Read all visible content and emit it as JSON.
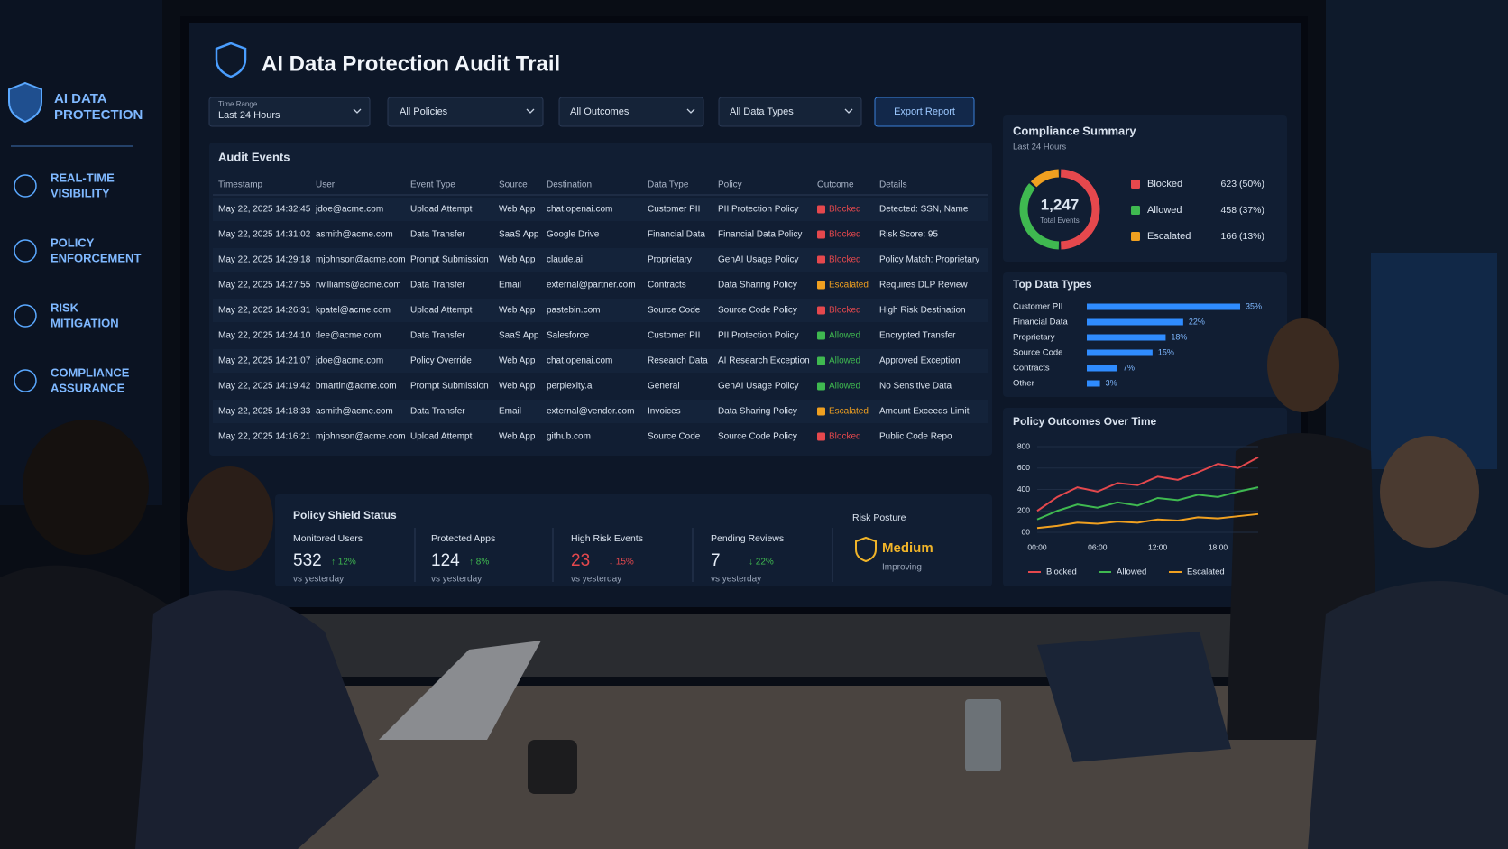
{
  "sidebar": {
    "brand": [
      "AI DATA",
      "PROTECTION"
    ],
    "items": [
      [
        "REAL-TIME",
        "VISIBILITY"
      ],
      [
        "POLICY",
        "ENFORCEMENT"
      ],
      [
        "RISK",
        "MITIGATION"
      ],
      [
        "COMPLIANCE",
        "ASSURANCE"
      ]
    ]
  },
  "header": {
    "title": "AI Data Protection Audit Trail"
  },
  "filters": {
    "time_range_label": "Time Range",
    "time_range": "Last 24 Hours",
    "policies": "All Policies",
    "outcomes": "All Outcomes",
    "data_types": "All Data Types",
    "export": "Export Report"
  },
  "audit_table": {
    "title": "Audit Events",
    "columns": [
      "Timestamp",
      "User",
      "Event Type",
      "Source",
      "Destination",
      "Data Type",
      "Policy",
      "Outcome",
      "Details"
    ],
    "rows": [
      [
        "May 22, 2025 14:32:45",
        "jdoe@acme.com",
        "Upload Attempt",
        "Web App",
        "chat.openai.com",
        "Customer PII",
        "PII Protection Policy",
        "Blocked",
        "Detected: SSN, Name"
      ],
      [
        "May 22, 2025 14:31:02",
        "asmith@acme.com",
        "Data Transfer",
        "SaaS App",
        "Google Drive",
        "Financial Data",
        "Financial Data Policy",
        "Blocked",
        "Risk Score: 95"
      ],
      [
        "May 22, 2025 14:29:18",
        "mjohnson@acme.com",
        "Prompt Submission",
        "Web App",
        "claude.ai",
        "Proprietary",
        "GenAI Usage Policy",
        "Blocked",
        "Policy Match: Proprietary"
      ],
      [
        "May 22, 2025 14:27:55",
        "rwilliams@acme.com",
        "Data Transfer",
        "Email",
        "external@partner.com",
        "Contracts",
        "Data Sharing Policy",
        "Escalated",
        "Requires DLP Review"
      ],
      [
        "May 22, 2025 14:26:31",
        "kpatel@acme.com",
        "Upload Attempt",
        "Web App",
        "pastebin.com",
        "Source Code",
        "Source Code Policy",
        "Blocked",
        "High Risk Destination"
      ],
      [
        "May 22, 2025 14:24:10",
        "tlee@acme.com",
        "Data Transfer",
        "SaaS App",
        "Salesforce",
        "Customer PII",
        "PII Protection Policy",
        "Allowed",
        "Encrypted Transfer"
      ],
      [
        "May 22, 2025 14:21:07",
        "jdoe@acme.com",
        "Policy Override",
        "Web App",
        "chat.openai.com",
        "Research Data",
        "AI Research Exception",
        "Allowed",
        "Approved Exception"
      ],
      [
        "May 22, 2025 14:19:42",
        "bmartin@acme.com",
        "Prompt Submission",
        "Web App",
        "perplexity.ai",
        "General",
        "GenAI Usage Policy",
        "Allowed",
        "No Sensitive Data"
      ],
      [
        "May 22, 2025 14:18:33",
        "asmith@acme.com",
        "Data Transfer",
        "Email",
        "external@vendor.com",
        "Invoices",
        "Data Sharing Policy",
        "Escalated",
        "Amount Exceeds Limit"
      ],
      [
        "May 22, 2025 14:16:21",
        "mjohnson@acme.com",
        "Upload Attempt",
        "Web App",
        "github.com",
        "Source Code",
        "Source Code Policy",
        "Blocked",
        "Public Code Repo"
      ]
    ],
    "outcome_colors": {
      "Blocked": "#e5484d",
      "Allowed": "#3fb950",
      "Escalated": "#f0a020"
    }
  },
  "shield": {
    "title": "Policy Shield Status",
    "stats": [
      {
        "label": "Monitored Users",
        "value": 532,
        "change": "↑ 12%",
        "note": "vs yesterday",
        "value_color": "#e6edf7",
        "change_color": "#3fb950"
      },
      {
        "label": "Protected Apps",
        "value": 124,
        "change": "↑ 8%",
        "note": "vs yesterday",
        "value_color": "#e6edf7",
        "change_color": "#3fb950"
      },
      {
        "label": "High Risk Events",
        "value": 23,
        "change": "↓ 15%",
        "note": "vs yesterday",
        "value_color": "#e5484d",
        "change_color": "#e5484d"
      },
      {
        "label": "Pending Reviews",
        "value": 7,
        "change": "↓ 22%",
        "note": "vs yesterday",
        "value_color": "#e6edf7",
        "change_color": "#3fb950"
      }
    ],
    "risk": {
      "label": "Risk Posture",
      "value": "Medium",
      "note": "Improving",
      "color": "#f0b429"
    }
  },
  "chart_data": [
    {
      "type": "pie",
      "title": "Compliance Summary",
      "subtitle": "Last 24 Hours",
      "center_value": "1,247",
      "center_label": "Total Events",
      "categories": [
        "Blocked",
        "Allowed",
        "Escalated"
      ],
      "values": [
        623,
        458,
        166
      ],
      "value_labels": [
        "623 (50%)",
        "458 (37%)",
        "166 (13%)"
      ],
      "colors": [
        "#e5484d",
        "#3fb950",
        "#f0a020"
      ]
    },
    {
      "type": "bar",
      "orientation": "horizontal",
      "title": "Top Data Types",
      "categories": [
        "Customer PII",
        "Financial Data",
        "Proprietary",
        "Source Code",
        "Contracts",
        "Other"
      ],
      "values": [
        35,
        22,
        18,
        15,
        7,
        3
      ],
      "value_labels": [
        "35%",
        "22%",
        "18%",
        "15%",
        "7%",
        "3%"
      ],
      "color": "#2f8cff"
    },
    {
      "type": "line",
      "title": "Policy Outcomes Over Time",
      "categories": [
        "00:00",
        null,
        null,
        "06:00",
        null,
        null,
        "12:00",
        null,
        null,
        "18:00",
        null,
        null
      ],
      "series": [
        {
          "name": "Blocked",
          "color": "#e5484d",
          "values": [
            200,
            330,
            420,
            380,
            460,
            440,
            520,
            490,
            560,
            640,
            600,
            700
          ]
        },
        {
          "name": "Allowed",
          "color": "#3fb950",
          "values": [
            120,
            200,
            260,
            230,
            280,
            250,
            320,
            300,
            350,
            330,
            380,
            420
          ]
        },
        {
          "name": "Escalated",
          "color": "#f0a020",
          "values": [
            40,
            60,
            90,
            80,
            100,
            90,
            120,
            110,
            140,
            130,
            150,
            170
          ]
        }
      ],
      "ylim": [
        0,
        800
      ],
      "yticks": [
        800,
        600,
        400,
        200,
        {
          "value": 0,
          "label": "00"
        }
      ],
      "grid": true,
      "legend": "bottom"
    }
  ]
}
